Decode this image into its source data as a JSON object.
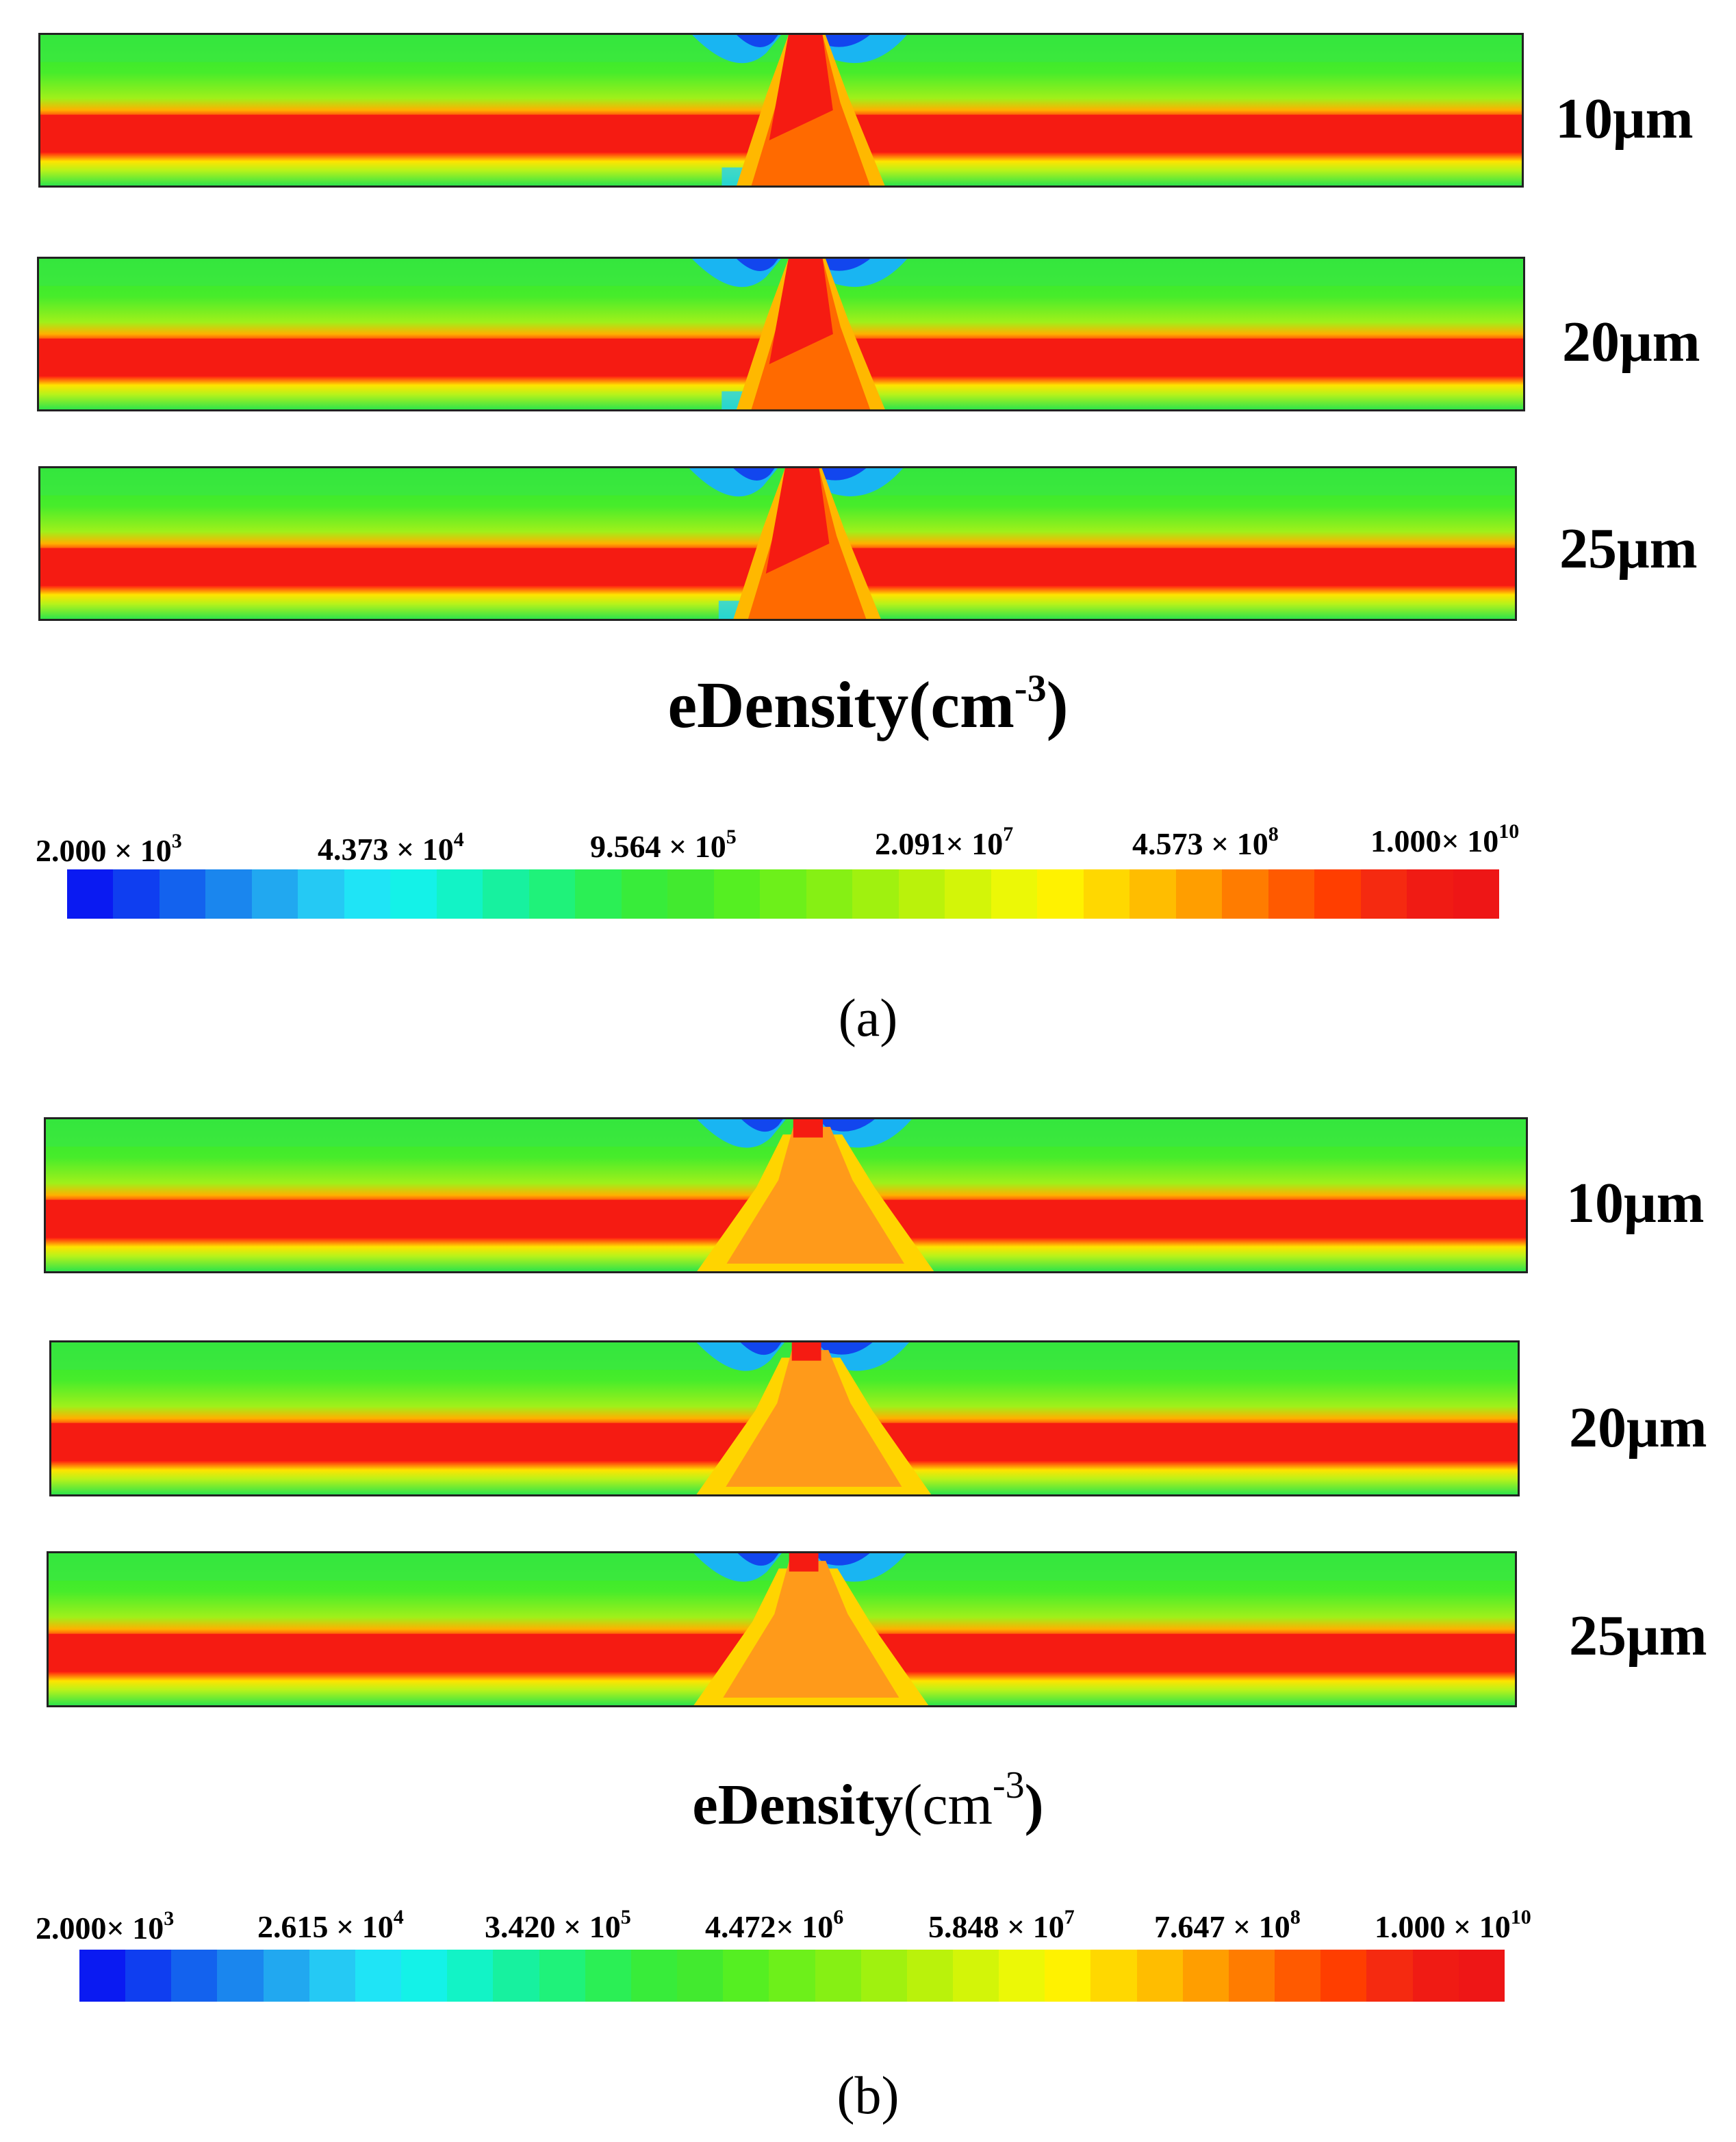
{
  "panels": [
    {
      "id": "a",
      "caption_label": "(a)",
      "title": {
        "text": "eDensity(cm",
        "exp": "-3",
        "close": ")"
      },
      "thickness_labels": [
        "10μm",
        "20μm",
        "25μm"
      ],
      "colorbar": {
        "colors": [
          "#0a1af2",
          "#0f3ef0",
          "#1362ee",
          "#1a86ee",
          "#21a8f0",
          "#25c9f4",
          "#1fe4f6",
          "#14f2e8",
          "#12f3c6",
          "#17f19f",
          "#1ff27a",
          "#2bef55",
          "#38ec3a",
          "#42ea2f",
          "#55ef22",
          "#6df01a",
          "#86f014",
          "#a0f10f",
          "#baf20b",
          "#d3f508",
          "#ecf806",
          "#fff200",
          "#ffd800",
          "#ffbd00",
          "#ff9e00",
          "#ff7c00",
          "#ff5a00",
          "#ff3e00",
          "#f52a10",
          "#f01b14",
          "#ee1616"
        ],
        "ticks": [
          {
            "base": "2.000 × 10",
            "exp": "3"
          },
          {
            "base": "4.373 × 10",
            "exp": "4"
          },
          {
            "base": "9.564 × 10",
            "exp": "5"
          },
          {
            "base": "2.091× 10",
            "exp": "7"
          },
          {
            "base": "4.573 × 10",
            "exp": "8"
          },
          {
            "base": "1.000× 10",
            "exp": "10"
          }
        ]
      }
    },
    {
      "id": "b",
      "caption_label": "(b)",
      "title": {
        "text": "eDensity",
        "unit": "(cm",
        "exp": "-3",
        "close": ")"
      },
      "thickness_labels": [
        "10μm",
        "20μm",
        "25μm"
      ],
      "colorbar": {
        "colors": [
          "#0a1af2",
          "#0f3ef0",
          "#1362ee",
          "#1a86ee",
          "#21a8f0",
          "#25c9f4",
          "#1fe4f6",
          "#14f2e8",
          "#12f3c6",
          "#17f19f",
          "#1ff27a",
          "#2bef55",
          "#38ec3a",
          "#42ea2f",
          "#55ef22",
          "#6df01a",
          "#86f014",
          "#a0f10f",
          "#baf20b",
          "#d3f508",
          "#ecf806",
          "#fff200",
          "#ffd800",
          "#ffbd00",
          "#ff9e00",
          "#ff7c00",
          "#ff5a00",
          "#ff3e00",
          "#f52a10",
          "#f01b14",
          "#ee1616"
        ],
        "ticks": [
          {
            "base": "2.000× 10",
            "exp": "3"
          },
          {
            "base": "2.615 × 10",
            "exp": "4"
          },
          {
            "base": "3.420 × 10",
            "exp": "5"
          },
          {
            "base": "4.472× 10",
            "exp": "6"
          },
          {
            "base": "5.848 × 10",
            "exp": "7"
          },
          {
            "base": "7.647 × 10",
            "exp": "8"
          },
          {
            "base": "1.000 × 10",
            "exp": "10"
          }
        ]
      }
    }
  ]
}
